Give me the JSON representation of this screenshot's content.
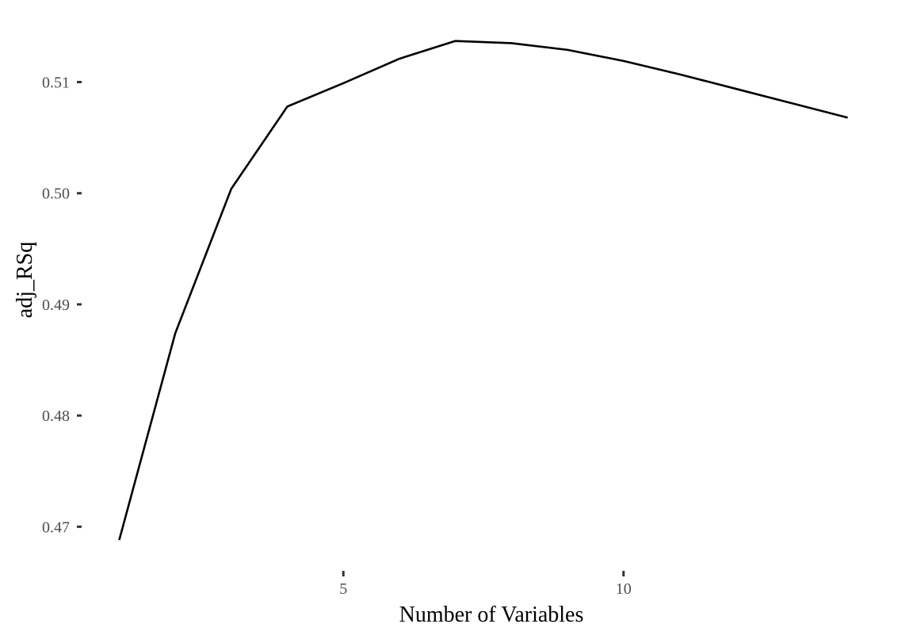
{
  "chart_data": {
    "type": "line",
    "title": "",
    "xlabel": "Number of Variables",
    "ylabel": "adj_RSq",
    "x_ticks": [
      5,
      10
    ],
    "x_tick_labels": [
      "5",
      "10"
    ],
    "y_ticks": [
      0.47,
      0.48,
      0.49,
      0.5,
      0.51
    ],
    "y_tick_labels": [
      "0.47",
      "0.48",
      "0.49",
      "0.50",
      "0.51"
    ],
    "xlim": [
      0.4,
      14.6
    ],
    "ylim": [
      0.4671,
      0.5161
    ],
    "grid": false,
    "legend": "none",
    "series": [
      {
        "color": "#000000",
        "x": [
          1,
          2,
          3,
          4,
          5,
          6,
          7,
          8,
          9,
          10,
          11,
          12,
          13,
          14
        ],
        "y": [
          0.4688,
          0.4874,
          0.5004,
          0.5078,
          0.5099,
          0.5121,
          0.5137,
          0.5135,
          0.5129,
          0.5119,
          0.5107,
          0.5094,
          0.5081,
          0.5068
        ]
      }
    ]
  }
}
